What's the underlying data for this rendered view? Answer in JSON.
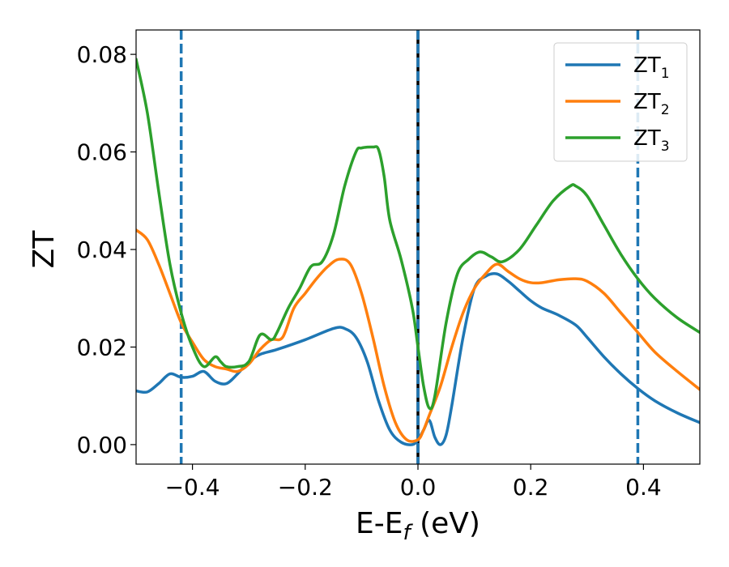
{
  "chart_data": {
    "type": "line",
    "xlabel": {
      "main": "E-E",
      "sub": "f",
      "suffix": " (eV)"
    },
    "ylabel": "ZT",
    "xlim": [
      -0.5,
      0.5
    ],
    "ylim": [
      -0.004,
      0.085
    ],
    "xticks": [
      -0.4,
      -0.2,
      0.0,
      0.2,
      0.4
    ],
    "xtick_labels": [
      "−0.4",
      "−0.2",
      "0.0",
      "0.2",
      "0.4"
    ],
    "yticks": [
      0.0,
      0.02,
      0.04,
      0.06,
      0.08
    ],
    "ytick_labels": [
      "0.00",
      "0.02",
      "0.04",
      "0.06",
      "0.08"
    ],
    "grid": false,
    "legend_position": "top-right",
    "vlines": [
      {
        "x": -0.42,
        "style": "dashed",
        "color": "#1f77b4"
      },
      {
        "x": 0.0,
        "style": "solid",
        "color": "#000000"
      },
      {
        "x": 0.0,
        "style": "dashed",
        "color": "#1f77b4"
      },
      {
        "x": 0.39,
        "style": "dashed",
        "color": "#1f77b4"
      }
    ],
    "series": [
      {
        "name": "ZT",
        "name_sub": "1",
        "color": "#1f77b4",
        "x": [
          -0.5,
          -0.48,
          -0.46,
          -0.44,
          -0.42,
          -0.4,
          -0.38,
          -0.36,
          -0.34,
          -0.32,
          -0.3,
          -0.28,
          -0.25,
          -0.2,
          -0.15,
          -0.13,
          -0.11,
          -0.09,
          -0.07,
          -0.05,
          -0.03,
          -0.01,
          0.0,
          0.01,
          0.02,
          0.03,
          0.04,
          0.05,
          0.06,
          0.08,
          0.1,
          0.12,
          0.14,
          0.16,
          0.18,
          0.2,
          0.22,
          0.25,
          0.28,
          0.3,
          0.33,
          0.36,
          0.39,
          0.42,
          0.46,
          0.5
        ],
        "y": [
          0.011,
          0.0108,
          0.0125,
          0.0145,
          0.0138,
          0.014,
          0.015,
          0.013,
          0.0125,
          0.0145,
          0.017,
          0.0185,
          0.0195,
          0.0215,
          0.0238,
          0.0238,
          0.022,
          0.017,
          0.009,
          0.003,
          0.0005,
          0.0,
          0.001,
          0.003,
          0.005,
          0.0015,
          0.0,
          0.002,
          0.008,
          0.022,
          0.032,
          0.0345,
          0.035,
          0.0335,
          0.0315,
          0.0295,
          0.028,
          0.0265,
          0.0245,
          0.022,
          0.018,
          0.0145,
          0.0115,
          0.009,
          0.0065,
          0.0045
        ]
      },
      {
        "name": "ZT",
        "name_sub": "2",
        "color": "#ff7f0e",
        "x": [
          -0.5,
          -0.48,
          -0.46,
          -0.44,
          -0.42,
          -0.4,
          -0.38,
          -0.36,
          -0.34,
          -0.32,
          -0.3,
          -0.28,
          -0.26,
          -0.24,
          -0.22,
          -0.2,
          -0.18,
          -0.16,
          -0.14,
          -0.12,
          -0.1,
          -0.08,
          -0.06,
          -0.04,
          -0.02,
          0.0,
          0.01,
          0.02,
          0.04,
          0.06,
          0.08,
          0.1,
          0.12,
          0.14,
          0.16,
          0.18,
          0.2,
          0.22,
          0.25,
          0.28,
          0.3,
          0.33,
          0.36,
          0.39,
          0.42,
          0.46,
          0.5
        ],
        "y": [
          0.044,
          0.042,
          0.037,
          0.031,
          0.025,
          0.021,
          0.0175,
          0.016,
          0.0155,
          0.015,
          0.0165,
          0.0195,
          0.0215,
          0.022,
          0.028,
          0.031,
          0.034,
          0.0365,
          0.038,
          0.037,
          0.031,
          0.022,
          0.012,
          0.0045,
          0.001,
          0.001,
          0.003,
          0.006,
          0.012,
          0.02,
          0.027,
          0.032,
          0.035,
          0.037,
          0.0355,
          0.034,
          0.0332,
          0.0332,
          0.0338,
          0.034,
          0.0335,
          0.031,
          0.027,
          0.023,
          0.019,
          0.015,
          0.0113
        ]
      },
      {
        "name": "ZT",
        "name_sub": "3",
        "color": "#2ca02c",
        "x": [
          -0.5,
          -0.48,
          -0.46,
          -0.44,
          -0.42,
          -0.4,
          -0.38,
          -0.36,
          -0.35,
          -0.34,
          -0.32,
          -0.3,
          -0.28,
          -0.26,
          -0.25,
          -0.23,
          -0.21,
          -0.19,
          -0.17,
          -0.15,
          -0.13,
          -0.11,
          -0.1,
          -0.08,
          -0.07,
          -0.06,
          -0.05,
          -0.03,
          -0.01,
          0.0,
          0.01,
          0.02,
          0.03,
          0.05,
          0.07,
          0.09,
          0.11,
          0.13,
          0.15,
          0.18,
          0.21,
          0.24,
          0.27,
          0.28,
          0.3,
          0.33,
          0.36,
          0.39,
          0.42,
          0.46,
          0.5
        ],
        "y": [
          0.079,
          0.068,
          0.052,
          0.037,
          0.027,
          0.02,
          0.016,
          0.018,
          0.017,
          0.016,
          0.016,
          0.017,
          0.0225,
          0.0215,
          0.023,
          0.028,
          0.032,
          0.0365,
          0.0375,
          0.043,
          0.053,
          0.06,
          0.0608,
          0.061,
          0.0605,
          0.055,
          0.046,
          0.038,
          0.028,
          0.02,
          0.012,
          0.0075,
          0.01,
          0.025,
          0.035,
          0.038,
          0.0395,
          0.0385,
          0.0375,
          0.04,
          0.045,
          0.05,
          0.053,
          0.053,
          0.051,
          0.045,
          0.039,
          0.034,
          0.03,
          0.026,
          0.023
        ]
      }
    ]
  }
}
